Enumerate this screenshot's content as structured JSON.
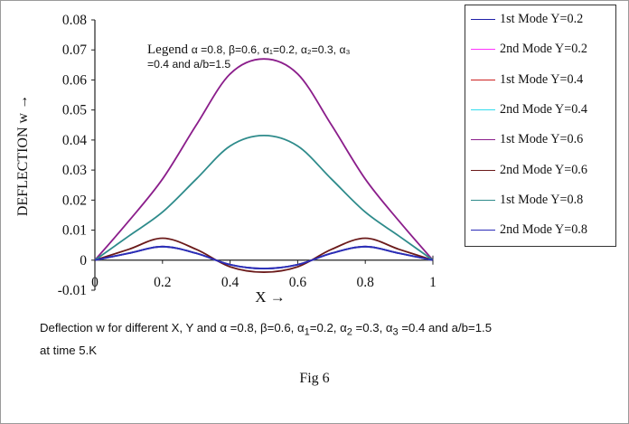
{
  "chart_data": {
    "type": "line",
    "xlabel": "X →",
    "ylabel": "DEFLECTION w →",
    "xlim": [
      0,
      1
    ],
    "ylim": [
      -0.01,
      0.08
    ],
    "xticks": [
      "0",
      "0.2",
      "0.4",
      "0.6",
      "0.8",
      "1"
    ],
    "yticks": [
      "-0.01",
      "0",
      "0.01",
      "0.02",
      "0.03",
      "0.04",
      "0.05",
      "0.06",
      "0.07",
      "0.08"
    ],
    "grid": false,
    "legend_position": "top-right outside",
    "annotation": {
      "prefix": "Legend ",
      "line1": "α =0.8, β=0.6, α₁=0.2, α₂=0.3, α₃",
      "line2": "=0.4 and a/b=1.5"
    },
    "x": [
      0,
      0.1,
      0.2,
      0.3,
      0.4,
      0.5,
      0.6,
      0.7,
      0.8,
      0.9,
      1.0
    ],
    "series": [
      {
        "name": "1st Mode Y=0.2",
        "color": "#1f1fa8",
        "values": [
          0,
          0.0023,
          0.0045,
          0.0023,
          -0.0015,
          -0.0028,
          -0.0015,
          0.0023,
          0.0045,
          0.0023,
          0
        ]
      },
      {
        "name": "2nd Mode Y=0.2",
        "color": "#ff33ff",
        "values": [
          0,
          0.0023,
          0.0045,
          0.0023,
          -0.0015,
          -0.0028,
          -0.0015,
          0.0023,
          0.0045,
          0.0023,
          0
        ]
      },
      {
        "name": "1st Mode Y=0.4",
        "color": "#cc2222",
        "values": [
          0,
          0.0023,
          0.0045,
          0.0023,
          -0.0015,
          -0.0028,
          -0.0015,
          0.0023,
          0.0045,
          0.0023,
          0
        ]
      },
      {
        "name": "2nd Mode Y=0.4",
        "color": "#33ddee",
        "values": [
          0,
          0.0023,
          0.0045,
          0.0023,
          -0.0015,
          -0.0028,
          -0.0015,
          0.0023,
          0.0045,
          0.0023,
          0
        ]
      },
      {
        "name": "1st Mode Y=0.6",
        "color": "#8b1e8b",
        "values": [
          0,
          0.013,
          0.027,
          0.045,
          0.062,
          0.067,
          0.062,
          0.045,
          0.027,
          0.013,
          0
        ]
      },
      {
        "name": "2nd Mode Y=0.6",
        "color": "#6b1a1a",
        "values": [
          0,
          0.0036,
          0.0073,
          0.0036,
          -0.0022,
          -0.004,
          -0.0022,
          0.0036,
          0.0073,
          0.0036,
          0
        ]
      },
      {
        "name": "1st Mode Y=0.8",
        "color": "#2e8b8b",
        "values": [
          0,
          0.008,
          0.016,
          0.027,
          0.038,
          0.0415,
          0.038,
          0.027,
          0.016,
          0.008,
          0
        ]
      },
      {
        "name": "2nd Mode Y=0.8",
        "color": "#2b2bb8",
        "values": [
          0,
          0.0023,
          0.0045,
          0.0023,
          -0.0015,
          -0.0028,
          -0.0015,
          0.0023,
          0.0045,
          0.0023,
          0
        ]
      }
    ]
  },
  "caption": {
    "line1_a": "Deflection w for different X, Y and α =0.8, β=0.6, α",
    "sub1": "1",
    "line1_b": "=0.2, α",
    "sub2": "2",
    "line1_c": " =0.3, α",
    "sub3": "3",
    "line1_d": " =0.4 and a/b=1.5",
    "line2": "at time 5.K"
  },
  "fig_label": "Fig 6"
}
